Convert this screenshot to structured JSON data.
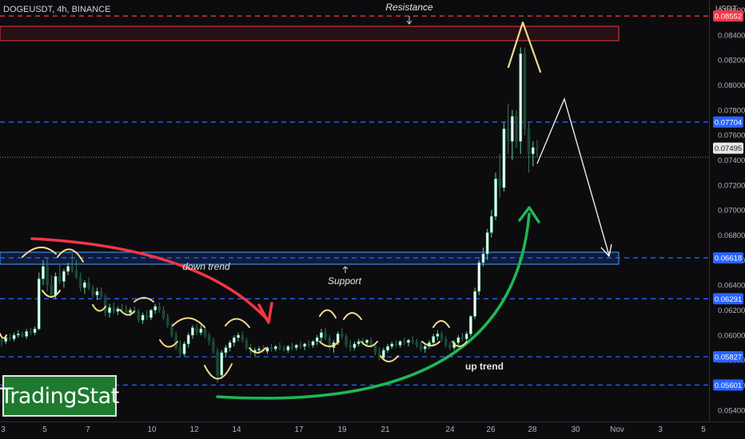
{
  "symbol_title": "DOGEUSDT, 4h, BINANCE",
  "watermark": "TradingStat",
  "chart_data": {
    "type": "candlestick",
    "symbol": "DOGEUSDT",
    "timeframe": "4h",
    "exchange": "BINANCE",
    "currency_label": "USDT",
    "ylim": [
      0.0531,
      0.0868
    ],
    "y_ticks": [
      "0.05400",
      "0.05600",
      "0.05800",
      "0.06000",
      "0.06200",
      "0.06400",
      "0.06600",
      "0.06800",
      "0.07000",
      "0.07200",
      "0.07400",
      "0.07600",
      "0.07800",
      "0.08000",
      "0.08200",
      "0.08400",
      "0.08600"
    ],
    "x_ticks": [
      "3",
      "5",
      "7",
      "10",
      "12",
      "14",
      "17",
      "19",
      "21",
      "24",
      "26",
      "28",
      "30",
      "Nov",
      "3",
      "5"
    ],
    "last_price": "0.07495",
    "horizontal_levels": [
      {
        "label": "0.08552",
        "color": "#f23645",
        "style": "dashed"
      },
      {
        "label": "0.07704",
        "color": "#2962ff",
        "style": "dashed"
      },
      {
        "label": "0.06618",
        "color": "#2962ff",
        "style": "dashed"
      },
      {
        "label": "0.06291",
        "color": "#2962ff",
        "style": "dashed"
      },
      {
        "label": "0.05827",
        "color": "#2962ff",
        "style": "dashed"
      },
      {
        "label": "0.05601",
        "color": "#2962ff",
        "style": "dashed"
      }
    ],
    "zones": [
      {
        "name": "Resistance",
        "low": 0.0853,
        "high": 0.0865,
        "color": "#f23645"
      },
      {
        "name": "Support",
        "low": 0.0655,
        "high": 0.0666,
        "color": "#4aa3ff"
      }
    ],
    "annotations": [
      "Resistance",
      "Support",
      "down trend",
      "up trend"
    ],
    "candles": [
      {
        "o": 0.0596,
        "h": 0.0599,
        "l": 0.0591,
        "c": 0.0595
      },
      {
        "o": 0.0595,
        "h": 0.06,
        "l": 0.0593,
        "c": 0.0598
      },
      {
        "o": 0.0598,
        "h": 0.0601,
        "l": 0.0595,
        "c": 0.0597
      },
      {
        "o": 0.0597,
        "h": 0.0602,
        "l": 0.0595,
        "c": 0.06
      },
      {
        "o": 0.06,
        "h": 0.0604,
        "l": 0.0598,
        "c": 0.0601
      },
      {
        "o": 0.0601,
        "h": 0.0603,
        "l": 0.0598,
        "c": 0.0599
      },
      {
        "o": 0.0599,
        "h": 0.0605,
        "l": 0.0597,
        "c": 0.0603
      },
      {
        "o": 0.0603,
        "h": 0.0606,
        "l": 0.06,
        "c": 0.0602
      },
      {
        "o": 0.0602,
        "h": 0.0607,
        "l": 0.06,
        "c": 0.0605
      },
      {
        "o": 0.0605,
        "h": 0.065,
        "l": 0.0604,
        "c": 0.0645
      },
      {
        "o": 0.0645,
        "h": 0.066,
        "l": 0.064,
        "c": 0.0655
      },
      {
        "o": 0.0655,
        "h": 0.0662,
        "l": 0.0635,
        "c": 0.064
      },
      {
        "o": 0.064,
        "h": 0.0648,
        "l": 0.063,
        "c": 0.0632
      },
      {
        "o": 0.0632,
        "h": 0.065,
        "l": 0.0629,
        "c": 0.0647
      },
      {
        "o": 0.0647,
        "h": 0.0656,
        "l": 0.0641,
        "c": 0.0643
      },
      {
        "o": 0.0643,
        "h": 0.0653,
        "l": 0.0638,
        "c": 0.0651
      },
      {
        "o": 0.0651,
        "h": 0.0658,
        "l": 0.0648,
        "c": 0.0655
      },
      {
        "o": 0.0655,
        "h": 0.0665,
        "l": 0.065,
        "c": 0.0652
      },
      {
        "o": 0.0652,
        "h": 0.066,
        "l": 0.0645,
        "c": 0.0646
      },
      {
        "o": 0.0646,
        "h": 0.065,
        "l": 0.0635,
        "c": 0.0638
      },
      {
        "o": 0.0638,
        "h": 0.0644,
        "l": 0.0633,
        "c": 0.0642
      },
      {
        "o": 0.0642,
        "h": 0.0646,
        "l": 0.0636,
        "c": 0.0638
      },
      {
        "o": 0.0638,
        "h": 0.064,
        "l": 0.063,
        "c": 0.0632
      },
      {
        "o": 0.0632,
        "h": 0.0638,
        "l": 0.0628,
        "c": 0.0635
      },
      {
        "o": 0.0635,
        "h": 0.0638,
        "l": 0.063,
        "c": 0.0631
      },
      {
        "o": 0.0631,
        "h": 0.0633,
        "l": 0.0615,
        "c": 0.0618
      },
      {
        "o": 0.0618,
        "h": 0.0625,
        "l": 0.0614,
        "c": 0.0622
      },
      {
        "o": 0.0622,
        "h": 0.0626,
        "l": 0.0617,
        "c": 0.0619
      },
      {
        "o": 0.0619,
        "h": 0.0623,
        "l": 0.0616,
        "c": 0.0621
      },
      {
        "o": 0.0621,
        "h": 0.0625,
        "l": 0.0618,
        "c": 0.062
      },
      {
        "o": 0.062,
        "h": 0.0624,
        "l": 0.0617,
        "c": 0.0618
      },
      {
        "o": 0.0618,
        "h": 0.0622,
        "l": 0.0615,
        "c": 0.062
      },
      {
        "o": 0.062,
        "h": 0.0623,
        "l": 0.0617,
        "c": 0.0619
      },
      {
        "o": 0.0619,
        "h": 0.0621,
        "l": 0.061,
        "c": 0.0612
      },
      {
        "o": 0.0612,
        "h": 0.0618,
        "l": 0.0609,
        "c": 0.0616
      },
      {
        "o": 0.0616,
        "h": 0.062,
        "l": 0.0612,
        "c": 0.0614
      },
      {
        "o": 0.0614,
        "h": 0.0621,
        "l": 0.0612,
        "c": 0.062
      },
      {
        "o": 0.062,
        "h": 0.0625,
        "l": 0.0617,
        "c": 0.0623
      },
      {
        "o": 0.0623,
        "h": 0.0626,
        "l": 0.0618,
        "c": 0.062
      },
      {
        "o": 0.062,
        "h": 0.0623,
        "l": 0.0612,
        "c": 0.0614
      },
      {
        "o": 0.0614,
        "h": 0.0617,
        "l": 0.0606,
        "c": 0.0608
      },
      {
        "o": 0.0608,
        "h": 0.061,
        "l": 0.0598,
        "c": 0.06
      },
      {
        "o": 0.06,
        "h": 0.0603,
        "l": 0.0588,
        "c": 0.059
      },
      {
        "o": 0.059,
        "h": 0.0596,
        "l": 0.0582,
        "c": 0.0585
      },
      {
        "o": 0.0585,
        "h": 0.0595,
        "l": 0.0583,
        "c": 0.0593
      },
      {
        "o": 0.0593,
        "h": 0.0602,
        "l": 0.059,
        "c": 0.06
      },
      {
        "o": 0.06,
        "h": 0.0608,
        "l": 0.0597,
        "c": 0.0606
      },
      {
        "o": 0.0606,
        "h": 0.0609,
        "l": 0.06,
        "c": 0.0602
      },
      {
        "o": 0.0602,
        "h": 0.0608,
        "l": 0.06,
        "c": 0.0605
      },
      {
        "o": 0.0605,
        "h": 0.0607,
        "l": 0.0598,
        "c": 0.06
      },
      {
        "o": 0.06,
        "h": 0.0602,
        "l": 0.0592,
        "c": 0.0595
      },
      {
        "o": 0.0595,
        "h": 0.0598,
        "l": 0.0585,
        "c": 0.0587
      },
      {
        "o": 0.0587,
        "h": 0.059,
        "l": 0.0562,
        "c": 0.0568
      },
      {
        "o": 0.0568,
        "h": 0.0588,
        "l": 0.0565,
        "c": 0.0586
      },
      {
        "o": 0.0586,
        "h": 0.0592,
        "l": 0.0582,
        "c": 0.059
      },
      {
        "o": 0.059,
        "h": 0.0596,
        "l": 0.0587,
        "c": 0.0594
      },
      {
        "o": 0.0594,
        "h": 0.06,
        "l": 0.0591,
        "c": 0.0598
      },
      {
        "o": 0.0598,
        "h": 0.0602,
        "l": 0.0595,
        "c": 0.06
      },
      {
        "o": 0.06,
        "h": 0.0603,
        "l": 0.0594,
        "c": 0.0596
      },
      {
        "o": 0.0596,
        "h": 0.0598,
        "l": 0.0588,
        "c": 0.059
      },
      {
        "o": 0.059,
        "h": 0.0593,
        "l": 0.0584,
        "c": 0.0586
      },
      {
        "o": 0.0586,
        "h": 0.059,
        "l": 0.0583,
        "c": 0.0588
      },
      {
        "o": 0.0588,
        "h": 0.0591,
        "l": 0.0585,
        "c": 0.0589
      },
      {
        "o": 0.0589,
        "h": 0.0592,
        "l": 0.0586,
        "c": 0.0587
      },
      {
        "o": 0.0587,
        "h": 0.0591,
        "l": 0.0585,
        "c": 0.059
      },
      {
        "o": 0.059,
        "h": 0.0593,
        "l": 0.0587,
        "c": 0.0589
      },
      {
        "o": 0.0589,
        "h": 0.0592,
        "l": 0.0587,
        "c": 0.0591
      },
      {
        "o": 0.0591,
        "h": 0.0594,
        "l": 0.0588,
        "c": 0.059
      },
      {
        "o": 0.059,
        "h": 0.0592,
        "l": 0.0587,
        "c": 0.0588
      },
      {
        "o": 0.0588,
        "h": 0.0592,
        "l": 0.0586,
        "c": 0.0591
      },
      {
        "o": 0.0591,
        "h": 0.0594,
        "l": 0.0588,
        "c": 0.059
      },
      {
        "o": 0.059,
        "h": 0.0593,
        "l": 0.0588,
        "c": 0.0592
      },
      {
        "o": 0.0592,
        "h": 0.0595,
        "l": 0.0589,
        "c": 0.0591
      },
      {
        "o": 0.0591,
        "h": 0.0594,
        "l": 0.0588,
        "c": 0.0593
      },
      {
        "o": 0.0593,
        "h": 0.0596,
        "l": 0.059,
        "c": 0.0592
      },
      {
        "o": 0.0592,
        "h": 0.0596,
        "l": 0.059,
        "c": 0.0595
      },
      {
        "o": 0.0595,
        "h": 0.06,
        "l": 0.0592,
        "c": 0.0598
      },
      {
        "o": 0.0598,
        "h": 0.0605,
        "l": 0.0595,
        "c": 0.0602
      },
      {
        "o": 0.0602,
        "h": 0.0606,
        "l": 0.0596,
        "c": 0.0598
      },
      {
        "o": 0.0598,
        "h": 0.06,
        "l": 0.0588,
        "c": 0.059
      },
      {
        "o": 0.059,
        "h": 0.0596,
        "l": 0.0586,
        "c": 0.0594
      },
      {
        "o": 0.0594,
        "h": 0.0603,
        "l": 0.0592,
        "c": 0.0601
      },
      {
        "o": 0.0601,
        "h": 0.0606,
        "l": 0.0597,
        "c": 0.0599
      },
      {
        "o": 0.0599,
        "h": 0.0601,
        "l": 0.059,
        "c": 0.0592
      },
      {
        "o": 0.0592,
        "h": 0.0596,
        "l": 0.0587,
        "c": 0.059
      },
      {
        "o": 0.059,
        "h": 0.0595,
        "l": 0.0588,
        "c": 0.0593
      },
      {
        "o": 0.0593,
        "h": 0.0597,
        "l": 0.0591,
        "c": 0.0595
      },
      {
        "o": 0.0595,
        "h": 0.0598,
        "l": 0.0592,
        "c": 0.0594
      },
      {
        "o": 0.0594,
        "h": 0.0597,
        "l": 0.0591,
        "c": 0.0596
      },
      {
        "o": 0.0596,
        "h": 0.0598,
        "l": 0.059,
        "c": 0.0592
      },
      {
        "o": 0.0592,
        "h": 0.0594,
        "l": 0.0584,
        "c": 0.0586
      },
      {
        "o": 0.0586,
        "h": 0.059,
        "l": 0.058,
        "c": 0.0582
      },
      {
        "o": 0.0582,
        "h": 0.059,
        "l": 0.058,
        "c": 0.0588
      },
      {
        "o": 0.0588,
        "h": 0.0593,
        "l": 0.0586,
        "c": 0.0591
      },
      {
        "o": 0.0591,
        "h": 0.0595,
        "l": 0.0589,
        "c": 0.0593
      },
      {
        "o": 0.0593,
        "h": 0.0596,
        "l": 0.059,
        "c": 0.0592
      },
      {
        "o": 0.0592,
        "h": 0.0596,
        "l": 0.059,
        "c": 0.0595
      },
      {
        "o": 0.0595,
        "h": 0.0598,
        "l": 0.0592,
        "c": 0.0594
      },
      {
        "o": 0.0594,
        "h": 0.0597,
        "l": 0.0591,
        "c": 0.0596
      },
      {
        "o": 0.0596,
        "h": 0.0599,
        "l": 0.0593,
        "c": 0.0595
      },
      {
        "o": 0.0595,
        "h": 0.0597,
        "l": 0.059,
        "c": 0.0592
      },
      {
        "o": 0.0592,
        "h": 0.0595,
        "l": 0.0587,
        "c": 0.0589
      },
      {
        "o": 0.0589,
        "h": 0.0593,
        "l": 0.0586,
        "c": 0.0591
      },
      {
        "o": 0.0591,
        "h": 0.0596,
        "l": 0.0589,
        "c": 0.0594
      },
      {
        "o": 0.0594,
        "h": 0.0601,
        "l": 0.0592,
        "c": 0.0599
      },
      {
        "o": 0.0599,
        "h": 0.0604,
        "l": 0.0596,
        "c": 0.0601
      },
      {
        "o": 0.0601,
        "h": 0.0603,
        "l": 0.0595,
        "c": 0.0597
      },
      {
        "o": 0.0597,
        "h": 0.0599,
        "l": 0.059,
        "c": 0.0592
      },
      {
        "o": 0.0592,
        "h": 0.0595,
        "l": 0.0588,
        "c": 0.059
      },
      {
        "o": 0.059,
        "h": 0.0596,
        "l": 0.0588,
        "c": 0.0594
      },
      {
        "o": 0.0594,
        "h": 0.06,
        "l": 0.0592,
        "c": 0.0598
      },
      {
        "o": 0.0598,
        "h": 0.0602,
        "l": 0.0595,
        "c": 0.0597
      },
      {
        "o": 0.0597,
        "h": 0.0603,
        "l": 0.0595,
        "c": 0.0601
      },
      {
        "o": 0.0601,
        "h": 0.0616,
        "l": 0.0599,
        "c": 0.0615
      },
      {
        "o": 0.0615,
        "h": 0.0638,
        "l": 0.0613,
        "c": 0.0635
      },
      {
        "o": 0.0635,
        "h": 0.066,
        "l": 0.0632,
        "c": 0.0658
      },
      {
        "o": 0.0658,
        "h": 0.067,
        "l": 0.0655,
        "c": 0.0665
      },
      {
        "o": 0.0665,
        "h": 0.0685,
        "l": 0.066,
        "c": 0.0682
      },
      {
        "o": 0.0682,
        "h": 0.07,
        "l": 0.0678,
        "c": 0.0695
      },
      {
        "o": 0.0695,
        "h": 0.073,
        "l": 0.0692,
        "c": 0.0725
      },
      {
        "o": 0.0725,
        "h": 0.0745,
        "l": 0.071,
        "c": 0.0718
      },
      {
        "o": 0.0718,
        "h": 0.077,
        "l": 0.0715,
        "c": 0.0765
      },
      {
        "o": 0.0765,
        "h": 0.0785,
        "l": 0.0745,
        "c": 0.0755
      },
      {
        "o": 0.0755,
        "h": 0.078,
        "l": 0.074,
        "c": 0.0775
      },
      {
        "o": 0.0775,
        "h": 0.078,
        "l": 0.075,
        "c": 0.0755
      },
      {
        "o": 0.0755,
        "h": 0.083,
        "l": 0.0745,
        "c": 0.0825
      },
      {
        "o": 0.0825,
        "h": 0.083,
        "l": 0.076,
        "c": 0.0765
      },
      {
        "o": 0.0765,
        "h": 0.077,
        "l": 0.073,
        "c": 0.0745
      },
      {
        "o": 0.0745,
        "h": 0.0755,
        "l": 0.0735,
        "c": 0.075
      },
      {
        "o": 0.075,
        "h": 0.0756,
        "l": 0.0742,
        "c": 0.07495
      }
    ]
  }
}
